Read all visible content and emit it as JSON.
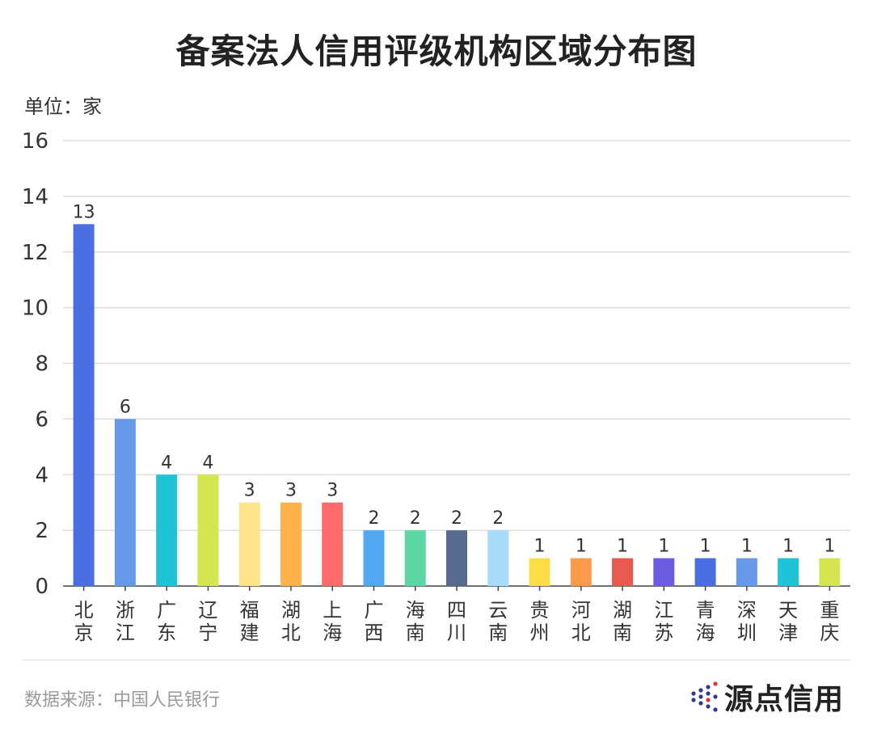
{
  "source_text": "数据来源：中国人民银行",
  "brand": {
    "name": "源点信用",
    "icon": "dot-cluster-logo-icon"
  },
  "chart_data": {
    "type": "bar",
    "title": "备案法人信用评级机构区域分布图",
    "unit_label": "单位：家",
    "categories": [
      "北京",
      "浙江",
      "广东",
      "辽宁",
      "福建",
      "湖北",
      "上海",
      "广西",
      "海南",
      "四川",
      "云南",
      "贵州",
      "河北",
      "湖南",
      "江苏",
      "青海",
      "深圳",
      "天津",
      "重庆"
    ],
    "values": [
      13,
      6,
      4,
      4,
      3,
      3,
      3,
      2,
      2,
      2,
      2,
      1,
      1,
      1,
      1,
      1,
      1,
      1,
      1
    ],
    "colors": [
      "#4a6fe3",
      "#6699e8",
      "#1fc3d8",
      "#d4e64f",
      "#fde38a",
      "#fdb24b",
      "#fd6b6b",
      "#4fa8f0",
      "#5cd6a4",
      "#566b8d",
      "#a6dcf8",
      "#fddc45",
      "#fd9b4b",
      "#e85a4f",
      "#6c5de0",
      "#4a6fe3",
      "#6699e8",
      "#1fc3d8",
      "#d4e64f"
    ],
    "ylim": [
      0,
      16
    ],
    "yticks": [
      0,
      2,
      4,
      6,
      8,
      10,
      12,
      14,
      16
    ],
    "grid": true,
    "data_labels": true,
    "legend": "none"
  }
}
